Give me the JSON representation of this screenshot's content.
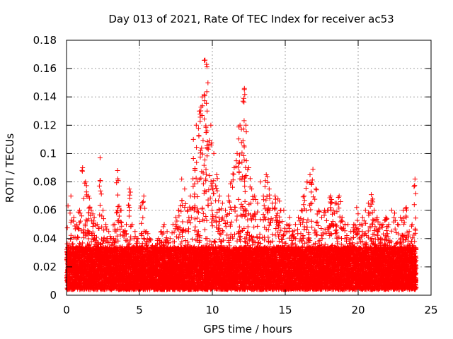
{
  "chart_data": {
    "type": "scatter",
    "title": "Day 013 of 2021, Rate Of TEC Index for receiver ac53",
    "xlabel": "GPS time / hours",
    "ylabel": "ROTI / TECUs",
    "xlim": [
      0,
      25
    ],
    "ylim": [
      0,
      0.18
    ],
    "xticks": [
      0,
      5,
      10,
      15,
      20,
      25
    ],
    "xtick_labels": [
      "0",
      "5",
      "10",
      "15",
      "20",
      "25"
    ],
    "yticks": [
      0,
      0.02,
      0.04,
      0.06,
      0.08,
      0.1,
      0.12,
      0.14,
      0.16,
      0.18
    ],
    "ytick_labels": [
      "0",
      "0.02",
      "0.04",
      "0.06",
      "0.08",
      "0.1",
      "0.12",
      "0.14",
      "0.16",
      "0.18"
    ],
    "grid": true,
    "marker": "+",
    "color": "#ff0000",
    "series": [
      {
        "name": "ROTI",
        "x": [
          0.1,
          0.3,
          0.5,
          0.7,
          0.9,
          1.1,
          1.3,
          1.5,
          1.7,
          1.9,
          2.1,
          2.3,
          2.5,
          2.7,
          2.9,
          3.1,
          3.3,
          3.5,
          3.7,
          3.9,
          4.1,
          4.3,
          4.5,
          4.7,
          4.9,
          5.1,
          5.3,
          5.5,
          5.7,
          5.9,
          6.1,
          6.3,
          6.5,
          6.7,
          6.9,
          7.1,
          7.3,
          7.5,
          7.7,
          7.9,
          8.1,
          8.3,
          8.5,
          8.7,
          8.9,
          9.1,
          9.3,
          9.5,
          9.6,
          9.7,
          9.9,
          10.1,
          10.3,
          10.5,
          10.7,
          10.9,
          11.1,
          11.3,
          11.5,
          11.7,
          11.9,
          12.1,
          12.2,
          12.3,
          12.5,
          12.7,
          12.9,
          13.1,
          13.3,
          13.5,
          13.7,
          13.9,
          14.1,
          14.3,
          14.5,
          14.7,
          14.9,
          15.1,
          15.3,
          15.5,
          15.7,
          15.9,
          16.1,
          16.3,
          16.5,
          16.7,
          16.9,
          17.1,
          17.3,
          17.5,
          17.7,
          17.9,
          18.1,
          18.3,
          18.5,
          18.7,
          18.9,
          19.1,
          19.3,
          19.5,
          19.7,
          19.9,
          20.1,
          20.3,
          20.5,
          20.7,
          20.9,
          21.1,
          21.3,
          21.5,
          21.7,
          21.9,
          22.1,
          22.3,
          22.5,
          22.7,
          22.9,
          23.1,
          23.3,
          23.5,
          23.7,
          23.9
        ],
        "y": [
          0.063,
          0.07,
          0.055,
          0.05,
          0.06,
          0.09,
          0.08,
          0.07,
          0.06,
          0.055,
          0.05,
          0.097,
          0.06,
          0.05,
          0.045,
          0.04,
          0.05,
          0.088,
          0.06,
          0.045,
          0.05,
          0.075,
          0.05,
          0.045,
          0.04,
          0.063,
          0.07,
          0.045,
          0.04,
          0.035,
          0.035,
          0.04,
          0.045,
          0.05,
          0.045,
          0.04,
          0.05,
          0.055,
          0.06,
          0.082,
          0.075,
          0.06,
          0.07,
          0.11,
          0.12,
          0.13,
          0.14,
          0.166,
          0.163,
          0.15,
          0.12,
          0.1,
          0.085,
          0.07,
          0.065,
          0.06,
          0.07,
          0.08,
          0.09,
          0.1,
          0.12,
          0.137,
          0.146,
          0.12,
          0.09,
          0.075,
          0.07,
          0.065,
          0.08,
          0.07,
          0.085,
          0.075,
          0.065,
          0.07,
          0.068,
          0.06,
          0.06,
          0.05,
          0.055,
          0.045,
          0.05,
          0.055,
          0.06,
          0.07,
          0.08,
          0.085,
          0.089,
          0.075,
          0.06,
          0.055,
          0.06,
          0.06,
          0.07,
          0.06,
          0.065,
          0.07,
          0.055,
          0.05,
          0.05,
          0.045,
          0.05,
          0.062,
          0.05,
          0.055,
          0.06,
          0.065,
          0.071,
          0.06,
          0.055,
          0.05,
          0.05,
          0.055,
          0.05,
          0.06,
          0.058,
          0.05,
          0.055,
          0.06,
          0.062,
          0.045,
          0.05,
          0.082
        ]
      }
    ]
  }
}
